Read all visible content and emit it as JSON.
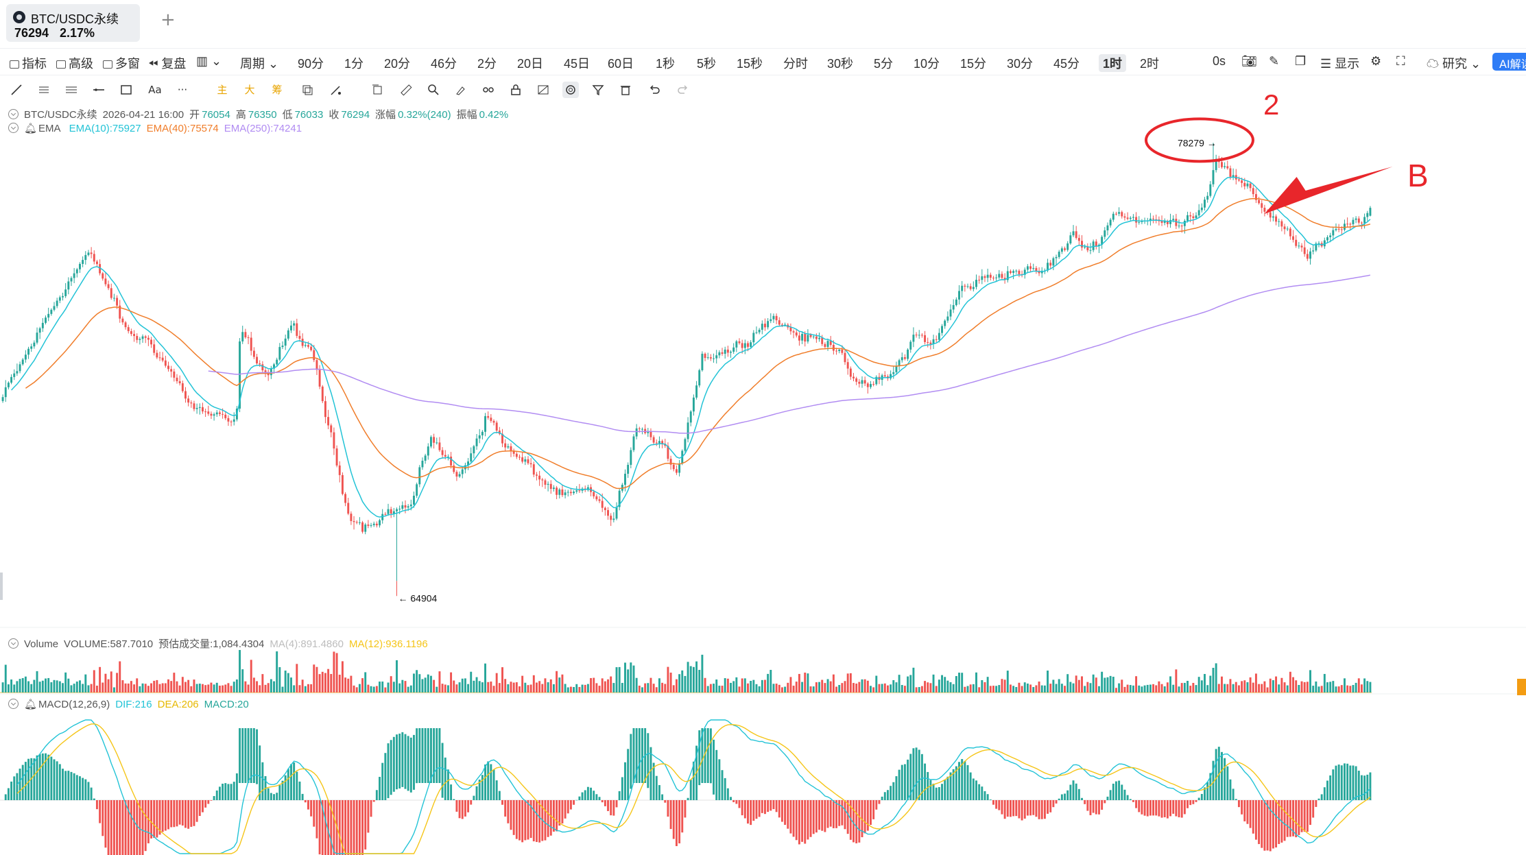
{
  "tab": {
    "symbol": "BTC/USDC永续",
    "price": "76294",
    "change": "2.17%",
    "add_label": "+"
  },
  "toolbar": {
    "left_items": [
      "指标",
      "高级",
      "多窗",
      "复盘"
    ],
    "period_label": "周期",
    "periods": [
      "90分",
      "1分",
      "20分",
      "46分",
      "2分",
      "20日",
      "45日",
      "60日",
      "1秒",
      "5秒",
      "15秒",
      "分时",
      "30秒",
      "5分",
      "10分",
      "15分",
      "30分",
      "45分",
      "1时",
      "2时"
    ],
    "active_period": "1时",
    "countdown": "0s",
    "display_label": "显示",
    "research_label": "研究",
    "ai_label": "AI解读"
  },
  "drawing_tools": [
    "trend-line",
    "parallel-channel",
    "horizontal-lines",
    "ray",
    "rectangle",
    "text",
    "more",
    "main",
    "big",
    "fib",
    "measure",
    "magnet",
    "copy",
    "ruler",
    "zoom",
    "brush",
    "visibility",
    "lock",
    "hide",
    "link",
    "filter",
    "delete",
    "undo",
    "redo"
  ],
  "drawing_text": {
    "text": "Aa",
    "more": "···",
    "main": "主",
    "big": "大",
    "fib": "筹"
  },
  "ohlc": {
    "symbol": "BTC/USDC永续",
    "datetime": "2026-04-21 16:00",
    "open_label": "开",
    "open": "76054",
    "high_label": "高",
    "high": "76350",
    "low_label": "低",
    "low": "76033",
    "close_label": "收",
    "close": "76294",
    "change_label": "涨幅",
    "change": "0.32%(240)",
    "amplitude_label": "振幅",
    "amplitude": "0.42%"
  },
  "ema_legend": {
    "name": "EMA",
    "ema10": "EMA(10):75927",
    "ema40": "EMA(40):75574",
    "ema250": "EMA(250):74241"
  },
  "volume_legend": {
    "name": "Volume",
    "volume": "VOLUME:587.7010",
    "estimated": "预估成交量:1,084.4304",
    "ma4": "MA(4):891.4860",
    "ma12": "MA(12):936.1196"
  },
  "macd_legend": {
    "name": "MACD(12,26,9)",
    "dif": "DIF:216",
    "dea": "DEA:206",
    "macd": "MACD:20"
  },
  "annotations": {
    "high_label": "78279 →",
    "low_label": "← 64904",
    "number_mark": "2",
    "letter_mark": "B"
  },
  "colors": {
    "up": "#26a69a",
    "down": "#ef5350",
    "ema10": "#22c3d6",
    "ema40": "#f07d2a",
    "ema250": "#b18cf2",
    "dea": "#f5c518",
    "annotation": "#e8262b",
    "accent": "#2e7cf6"
  },
  "chart_data": {
    "type": "line",
    "title": "BTC/USDC永续 1时",
    "x_count": 480,
    "price_range": [
      63800,
      79500
    ],
    "price_high": 78279,
    "price_low": 64904,
    "close_keyframes": [
      [
        0,
        70500
      ],
      [
        28,
        73800
      ],
      [
        40,
        74900
      ],
      [
        50,
        73800
      ],
      [
        58,
        72500
      ],
      [
        70,
        72200
      ],
      [
        90,
        70200
      ],
      [
        110,
        69600
      ],
      [
        112,
        72500
      ],
      [
        125,
        71200
      ],
      [
        137,
        72700
      ],
      [
        147,
        71500
      ],
      [
        162,
        67200
      ],
      [
        170,
        66600
      ],
      [
        180,
        67000
      ],
      [
        193,
        67200
      ],
      [
        202,
        69400
      ],
      [
        215,
        68000
      ],
      [
        228,
        70000
      ],
      [
        240,
        68800
      ],
      [
        265,
        67400
      ],
      [
        275,
        67600
      ],
      [
        288,
        66800
      ],
      [
        300,
        69700
      ],
      [
        318,
        68300
      ],
      [
        330,
        71800
      ],
      [
        345,
        72000
      ],
      [
        362,
        73000
      ],
      [
        378,
        72300
      ],
      [
        395,
        72100
      ],
      [
        404,
        70700
      ],
      [
        420,
        71200
      ],
      [
        430,
        72400
      ],
      [
        440,
        72200
      ],
      [
        452,
        73800
      ],
      [
        458,
        74000
      ],
      [
        475,
        74400
      ],
      [
        490,
        74300
      ],
      [
        505,
        75400
      ],
      [
        513,
        75000
      ],
      [
        525,
        76200
      ],
      [
        537,
        75900
      ],
      [
        552,
        75800
      ],
      [
        562,
        76200
      ],
      [
        568,
        76600
      ],
      [
        572,
        78000
      ],
      [
        580,
        77200
      ],
      [
        590,
        76600
      ],
      [
        605,
        75700
      ],
      [
        615,
        74800
      ],
      [
        625,
        75300
      ],
      [
        634,
        75700
      ],
      [
        645,
        76200
      ]
    ],
    "series": [
      {
        "name": "EMA(10)",
        "last": 75927
      },
      {
        "name": "EMA(40)",
        "last": 75574
      },
      {
        "name": "EMA(250)",
        "last": 74241
      }
    ],
    "volume": {
      "last": 587.701,
      "estimated": 1084.4304,
      "ma4": 891.486,
      "ma12": 936.1196
    },
    "macd": {
      "dif": 216,
      "dea": 206,
      "macd": 20,
      "params": [
        12,
        26,
        9
      ]
    }
  }
}
